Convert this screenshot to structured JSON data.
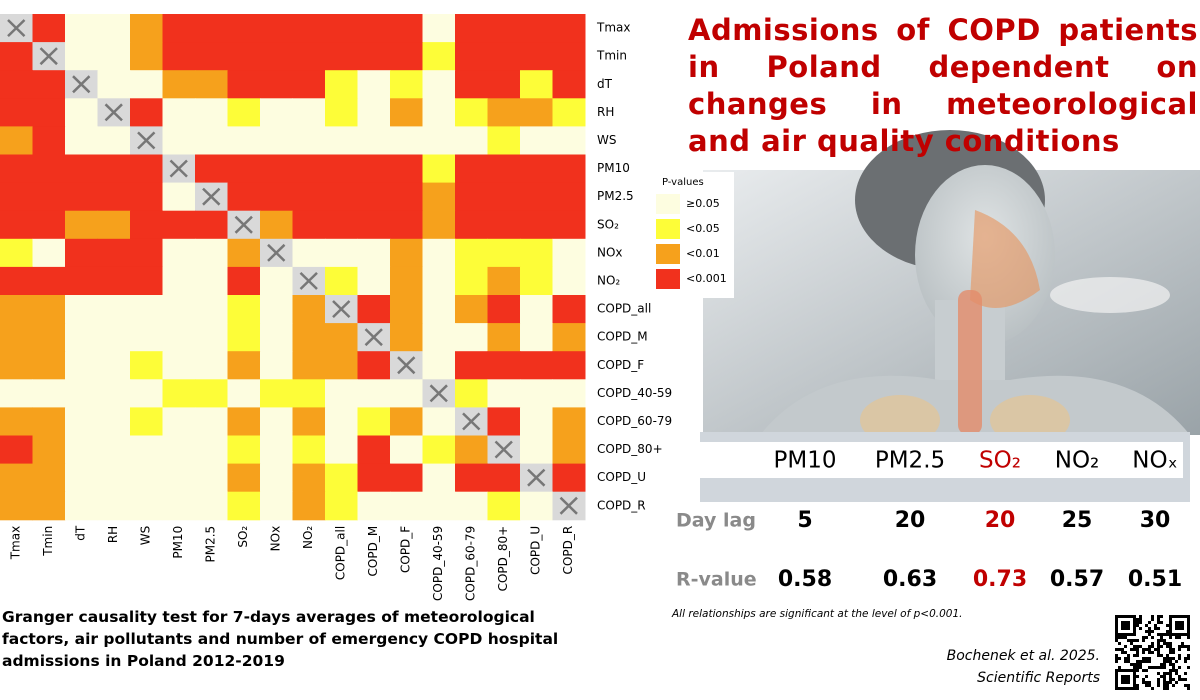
{
  "title": "Admissions of COPD patients in Poland dependent on changes in meteorological and air quality conditions",
  "chart_data": {
    "type": "heatmap",
    "caption": "Granger causality test for 7-days averages of meteorological factors, air pollutants and number of emergency COPD hospital admissions in Poland 2012-2019",
    "x_categories": [
      "Tmax",
      "Tmin",
      "dT",
      "RH",
      "WS",
      "PM10",
      "PM2.5",
      "SO₂",
      "NOx",
      "NO₂",
      "COPD_all",
      "COPD_M",
      "COPD_F",
      "COPD_40-59",
      "COPD_60-79",
      "COPD_80+",
      "COPD_U",
      "COPD_R"
    ],
    "y_categories": [
      "Tmax",
      "Tmin",
      "dT",
      "RH",
      "WS",
      "PM10",
      "PM2.5",
      "SO₂",
      "NOx",
      "NO₂",
      "COPD_all",
      "COPD_M",
      "COPD_F",
      "COPD_40-59",
      "COPD_60-79",
      "COPD_80+",
      "COPD_U",
      "COPD_R"
    ],
    "legend_title": "P-values",
    "classes": [
      {
        "label": "≥0.05",
        "color": "#fdfde0"
      },
      {
        "label": "<0.05",
        "color": "#fdfd38"
      },
      {
        "label": "<0.01",
        "color": "#f6a11c"
      },
      {
        "label": "<0.001",
        "color": "#f1311d"
      }
    ],
    "values": [
      [
        null,
        3,
        0,
        0,
        2,
        3,
        3,
        3,
        3,
        3,
        3,
        3,
        3,
        0,
        3,
        3,
        3,
        3
      ],
      [
        3,
        null,
        0,
        0,
        2,
        3,
        3,
        3,
        3,
        3,
        3,
        3,
        3,
        1,
        3,
        3,
        3,
        3
      ],
      [
        3,
        3,
        null,
        0,
        0,
        2,
        2,
        3,
        3,
        3,
        1,
        0,
        1,
        0,
        3,
        3,
        1,
        3
      ],
      [
        3,
        3,
        0,
        null,
        3,
        0,
        0,
        1,
        0,
        0,
        1,
        0,
        2,
        0,
        1,
        2,
        2,
        1
      ],
      [
        2,
        3,
        0,
        0,
        null,
        0,
        0,
        0,
        0,
        0,
        0,
        0,
        0,
        0,
        0,
        1,
        0,
        0
      ],
      [
        3,
        3,
        3,
        3,
        3,
        null,
        3,
        3,
        3,
        3,
        3,
        3,
        3,
        1,
        3,
        3,
        3,
        3
      ],
      [
        3,
        3,
        3,
        3,
        3,
        0,
        null,
        3,
        3,
        3,
        3,
        3,
        3,
        2,
        3,
        3,
        3,
        3
      ],
      [
        3,
        3,
        2,
        2,
        3,
        3,
        3,
        null,
        2,
        3,
        3,
        3,
        3,
        2,
        3,
        3,
        3,
        3
      ],
      [
        1,
        0,
        3,
        3,
        3,
        0,
        0,
        2,
        null,
        0,
        0,
        0,
        2,
        0,
        1,
        1,
        1,
        0
      ],
      [
        3,
        3,
        3,
        3,
        3,
        0,
        0,
        3,
        0,
        null,
        1,
        0,
        2,
        0,
        1,
        2,
        1,
        0
      ],
      [
        2,
        2,
        0,
        0,
        0,
        0,
        0,
        1,
        0,
        2,
        null,
        3,
        2,
        0,
        2,
        3,
        0,
        3
      ],
      [
        2,
        2,
        0,
        0,
        0,
        0,
        0,
        1,
        0,
        2,
        2,
        null,
        2,
        0,
        0,
        2,
        0,
        2
      ],
      [
        2,
        2,
        0,
        0,
        1,
        0,
        0,
        2,
        0,
        2,
        2,
        3,
        null,
        0,
        3,
        3,
        3,
        3
      ],
      [
        0,
        0,
        0,
        0,
        0,
        1,
        1,
        0,
        1,
        1,
        0,
        0,
        0,
        null,
        1,
        0,
        0,
        0
      ],
      [
        2,
        2,
        0,
        0,
        1,
        0,
        0,
        2,
        0,
        2,
        0,
        1,
        2,
        0,
        null,
        3,
        0,
        2
      ],
      [
        3,
        2,
        0,
        0,
        0,
        0,
        0,
        1,
        0,
        1,
        0,
        3,
        0,
        1,
        2,
        null,
        0,
        2
      ],
      [
        2,
        2,
        0,
        0,
        0,
        0,
        0,
        2,
        0,
        2,
        1,
        3,
        3,
        0,
        3,
        3,
        null,
        3
      ],
      [
        2,
        2,
        0,
        0,
        0,
        0,
        0,
        1,
        0,
        2,
        1,
        0,
        0,
        0,
        0,
        1,
        0,
        null
      ]
    ]
  },
  "table": {
    "row_labels": [
      "Day lag",
      "R-value"
    ],
    "columns": [
      {
        "header": "PM10",
        "day_lag": 5,
        "r_value": 0.58,
        "color": "#000000"
      },
      {
        "header": "PM2.5",
        "day_lag": 20,
        "r_value": 0.63,
        "color": "#000000"
      },
      {
        "header": "SO₂",
        "day_lag": 20,
        "r_value": 0.73,
        "color": "#c00000"
      },
      {
        "header": "NO₂",
        "day_lag": 25,
        "r_value": 0.57,
        "color": "#000000"
      },
      {
        "header": "NOₓ",
        "day_lag": 30,
        "r_value": 0.51,
        "color": "#000000"
      }
    ],
    "note": "All relationships are significant at the level of p<0.001."
  },
  "citation": [
    "Bochenek et al. 2025.",
    "Scientific Reports"
  ]
}
